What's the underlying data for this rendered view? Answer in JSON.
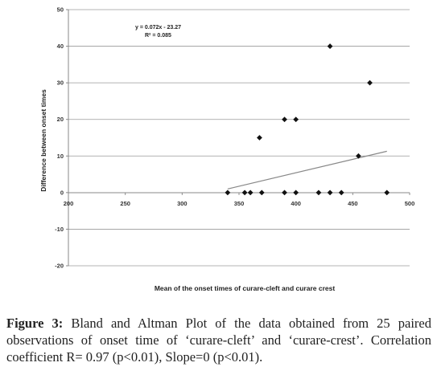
{
  "chart_data": {
    "type": "scatter",
    "title": "",
    "xlabel": "Mean of the onset times of curare-cleft and curare crest",
    "ylabel": "Difference between onset times",
    "xlim": [
      200,
      500
    ],
    "ylim": [
      -20,
      50
    ],
    "xticks": [
      200,
      250,
      300,
      350,
      400,
      450,
      500
    ],
    "yticks": [
      -20,
      -10,
      0,
      10,
      20,
      30,
      40,
      50
    ],
    "xtick_labels": [
      "200",
      "250",
      "300",
      "350",
      "400",
      "450",
      "500"
    ],
    "ytick_labels": [
      "-20",
      "-10",
      "0",
      "10",
      "20",
      "30",
      "40",
      "50"
    ],
    "grid": "horizontal",
    "series": [
      {
        "points": [
          {
            "x": 340,
            "y": 0
          },
          {
            "x": 355,
            "y": 0
          },
          {
            "x": 360,
            "y": 0
          },
          {
            "x": 370,
            "y": 0
          },
          {
            "x": 390,
            "y": 0
          },
          {
            "x": 400,
            "y": 0
          },
          {
            "x": 420,
            "y": 0
          },
          {
            "x": 430,
            "y": 0
          },
          {
            "x": 440,
            "y": 0
          },
          {
            "x": 480,
            "y": 0
          },
          {
            "x": 368,
            "y": 15
          },
          {
            "x": 390,
            "y": 20
          },
          {
            "x": 400,
            "y": 20
          },
          {
            "x": 430,
            "y": 40
          },
          {
            "x": 455,
            "y": 10
          },
          {
            "x": 465,
            "y": 30
          }
        ]
      }
    ],
    "trendline": {
      "x": [
        340,
        480
      ],
      "y": [
        1,
        11.3
      ],
      "equation": "y = 0.072x - 23.27",
      "r2": "R² = 0.085"
    }
  },
  "caption": {
    "label": "Figure 3:",
    "text": " Bland and Altman Plot of the data obtained from 25 paired observations of onset time of ‘curare-cleft’ and ‘curare-crest’. Correlation coefficient R= 0.97 (p<0.01), Slope=0 (p<0.01)."
  }
}
